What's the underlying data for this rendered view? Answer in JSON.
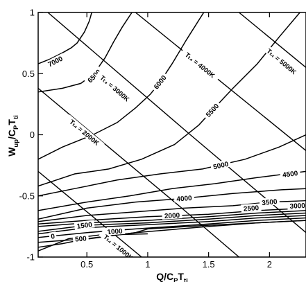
{
  "chart_data": {
    "type": "line",
    "title": "",
    "xlabel": {
      "main": "Q/C",
      "sub1": "P",
      "mid": "T",
      "sub2": "ti"
    },
    "ylabel": {
      "main": "W",
      "sub1": "up",
      "mid": "/C",
      "sub2": "P",
      "tail": "T",
      "sub3": "ti"
    },
    "xlim": [
      0.1,
      2.3
    ],
    "ylim": [
      -1,
      1
    ],
    "xticks": [
      0.5,
      1,
      1.5,
      2
    ],
    "yticks": [
      -1,
      -0.5,
      0,
      0.5,
      1
    ],
    "xtick_labels": [
      "0.5",
      "1",
      "1.5",
      "2"
    ],
    "ytick_labels": [
      "-1",
      "-0.5",
      "0",
      "0.5",
      "1"
    ],
    "grid": false,
    "contours": [
      {
        "level": 7000,
        "label": "7000",
        "label_at": [
          0.24,
          0.6
        ],
        "points": [
          [
            0.1,
            0.58
          ],
          [
            0.2,
            0.62
          ],
          [
            0.3,
            0.67
          ],
          [
            0.37,
            0.71
          ],
          [
            0.42,
            0.75
          ],
          [
            0.48,
            0.84
          ],
          [
            0.52,
            0.93
          ],
          [
            0.54,
            1.0
          ]
        ]
      },
      {
        "level": 6500,
        "label": "6500",
        "label_at": [
          0.56,
          0.48
        ],
        "points": [
          [
            0.1,
            0.35
          ],
          [
            0.3,
            0.38
          ],
          [
            0.45,
            0.42
          ],
          [
            0.52,
            0.47
          ],
          [
            0.58,
            0.53
          ],
          [
            0.65,
            0.63
          ],
          [
            0.72,
            0.76
          ],
          [
            0.79,
            0.88
          ],
          [
            0.87,
            1.0
          ]
        ]
      },
      {
        "level": 6000,
        "label": "6000",
        "label_at": [
          1.1,
          0.43
        ],
        "points": [
          [
            0.1,
            -0.2
          ],
          [
            0.3,
            -0.1
          ],
          [
            0.55,
            0.0
          ],
          [
            0.75,
            0.1
          ],
          [
            0.9,
            0.22
          ],
          [
            1.02,
            0.33
          ],
          [
            1.1,
            0.43
          ],
          [
            1.2,
            0.58
          ],
          [
            1.32,
            0.78
          ],
          [
            1.46,
            1.0
          ]
        ]
      },
      {
        "level": 5500,
        "label": "5500",
        "label_at": [
          1.53,
          0.2
        ],
        "points": [
          [
            0.1,
            -0.42
          ],
          [
            0.4,
            -0.32
          ],
          [
            0.68,
            -0.28
          ],
          [
            0.95,
            -0.2
          ],
          [
            1.22,
            -0.08
          ],
          [
            1.42,
            0.08
          ],
          [
            1.53,
            0.2
          ],
          [
            1.7,
            0.38
          ],
          [
            1.9,
            0.58
          ],
          [
            2.08,
            0.8
          ],
          [
            2.25,
            1.0
          ]
        ]
      },
      {
        "level": 5000,
        "label": "5000",
        "label_at": [
          1.6,
          -0.25
        ],
        "points": [
          [
            0.1,
            -0.5
          ],
          [
            0.4,
            -0.44
          ],
          [
            0.75,
            -0.37
          ],
          [
            1.1,
            -0.32
          ],
          [
            1.45,
            -0.28
          ],
          [
            1.8,
            -0.2
          ],
          [
            2.08,
            -0.1
          ],
          [
            2.3,
            0.0
          ]
        ]
      },
      {
        "level": 4500,
        "label": "4500",
        "label_at": [
          2.17,
          -0.32
        ],
        "points": [
          [
            0.1,
            -0.62
          ],
          [
            0.5,
            -0.55
          ],
          [
            0.85,
            -0.5
          ],
          [
            1.2,
            -0.44
          ],
          [
            1.55,
            -0.4
          ],
          [
            1.9,
            -0.35
          ],
          [
            2.3,
            -0.3
          ]
        ]
      },
      {
        "level": 4000,
        "label": "4000",
        "label_at": [
          1.3,
          -0.52
        ],
        "points": [
          [
            0.1,
            -0.69
          ],
          [
            0.5,
            -0.6
          ],
          [
            0.9,
            -0.55
          ],
          [
            1.3,
            -0.52
          ],
          [
            1.7,
            -0.48
          ],
          [
            2.1,
            -0.45
          ],
          [
            2.3,
            -0.44
          ]
        ]
      },
      {
        "level": 3500,
        "label": "3500",
        "label_at": [
          2.0,
          -0.55
        ],
        "points": [
          [
            0.1,
            -0.71
          ],
          [
            0.5,
            -0.66
          ],
          [
            0.9,
            -0.63
          ],
          [
            1.3,
            -0.6
          ],
          [
            1.7,
            -0.58
          ],
          [
            2.0,
            -0.55
          ],
          [
            2.3,
            -0.54
          ]
        ]
      },
      {
        "level": 3000,
        "label": "3000",
        "label_at": [
          2.23,
          -0.58
        ],
        "points": [
          [
            0.1,
            -0.73
          ],
          [
            0.5,
            -0.7
          ],
          [
            1.0,
            -0.67
          ],
          [
            1.5,
            -0.65
          ],
          [
            1.9,
            -0.62
          ],
          [
            2.3,
            -0.6
          ]
        ]
      },
      {
        "level": 2500,
        "label": "2500",
        "label_at": [
          1.85,
          -0.6
        ],
        "points": [
          [
            0.1,
            -0.75
          ],
          [
            0.5,
            -0.72
          ],
          [
            1.0,
            -0.7
          ],
          [
            1.5,
            -0.67
          ],
          [
            1.9,
            -0.64
          ],
          [
            2.3,
            -0.62
          ]
        ]
      },
      {
        "level": 2000,
        "label": "2000",
        "label_at": [
          1.2,
          -0.66
        ],
        "points": [
          [
            0.1,
            -0.79
          ],
          [
            0.5,
            -0.74
          ],
          [
            1.0,
            -0.72
          ],
          [
            1.5,
            -0.69
          ],
          [
            1.9,
            -0.66
          ],
          [
            2.3,
            -0.64
          ]
        ]
      },
      {
        "level": 1500,
        "label": "1500",
        "label_at": [
          0.48,
          -0.74
        ],
        "points": [
          [
            0.1,
            -0.81
          ],
          [
            0.5,
            -0.76
          ],
          [
            0.9,
            -0.74
          ],
          [
            1.5,
            -0.71
          ],
          [
            1.9,
            -0.68
          ],
          [
            2.3,
            -0.66
          ]
        ]
      },
      {
        "level": 1000,
        "label": "1000",
        "label_at": [
          0.73,
          -0.79
        ],
        "points": [
          [
            0.1,
            -0.84
          ],
          [
            0.5,
            -0.8
          ],
          [
            0.9,
            -0.77
          ],
          [
            1.5,
            -0.73
          ],
          [
            1.9,
            -0.7
          ],
          [
            2.3,
            -0.68
          ]
        ]
      },
      {
        "level": 500,
        "label": "500",
        "label_at": [
          0.45,
          -0.85
        ],
        "points": [
          [
            0.1,
            -0.88
          ],
          [
            0.5,
            -0.85
          ],
          [
            0.9,
            -0.8
          ],
          [
            1.5,
            -0.75
          ],
          [
            1.9,
            -0.72
          ],
          [
            2.3,
            -0.7
          ]
        ]
      },
      {
        "level": 0,
        "label": "0",
        "label_at": [
          0.22,
          -0.83
        ],
        "points": [
          [
            0.1,
            -0.92
          ],
          [
            0.3,
            -0.89
          ],
          [
            0.45,
            -0.86
          ],
          [
            0.9,
            -0.8
          ],
          [
            1.0,
            -0.77
          ],
          [
            1.5,
            -0.74
          ],
          [
            1.9,
            -0.72
          ],
          [
            2.3,
            -0.7
          ]
        ]
      }
    ],
    "tt4_lines": [
      {
        "label": "Tₜ₄ = 1000K",
        "label_at": [
          0.76,
          -0.92
        ],
        "points": [
          [
            0.1,
            -0.3
          ],
          [
            0.95,
            -1.0
          ]
        ]
      },
      {
        "label": "Tₜ₄ = 2000K",
        "label_at": [
          0.48,
          0.02
        ],
        "points": [
          [
            0.1,
            0.38
          ],
          [
            1.28,
            -0.6
          ],
          [
            1.75,
            -1.0
          ]
        ]
      },
      {
        "label": "Tₜ₄ = 3000K",
        "label_at": [
          0.73,
          0.38
        ],
        "points": [
          [
            0.18,
            1.0
          ],
          [
            1.35,
            0.0
          ],
          [
            2.3,
            -0.8
          ]
        ]
      },
      {
        "label": "Tₜ₄ = 4000K",
        "label_at": [
          1.43,
          0.57
        ],
        "points": [
          [
            0.9,
            1.0
          ],
          [
            2.3,
            -0.13
          ]
        ]
      },
      {
        "label": "Tₜ₄ = 5000K",
        "label_at": [
          2.1,
          0.6
        ],
        "points": [
          [
            1.75,
            1.0
          ],
          [
            2.3,
            0.55
          ]
        ]
      }
    ],
    "extra_line": {
      "points": [
        [
          0.1,
          -0.95
        ],
        [
          0.35,
          -0.85
        ],
        [
          0.6,
          -0.82
        ],
        [
          1.0,
          -0.81
        ]
      ]
    }
  }
}
